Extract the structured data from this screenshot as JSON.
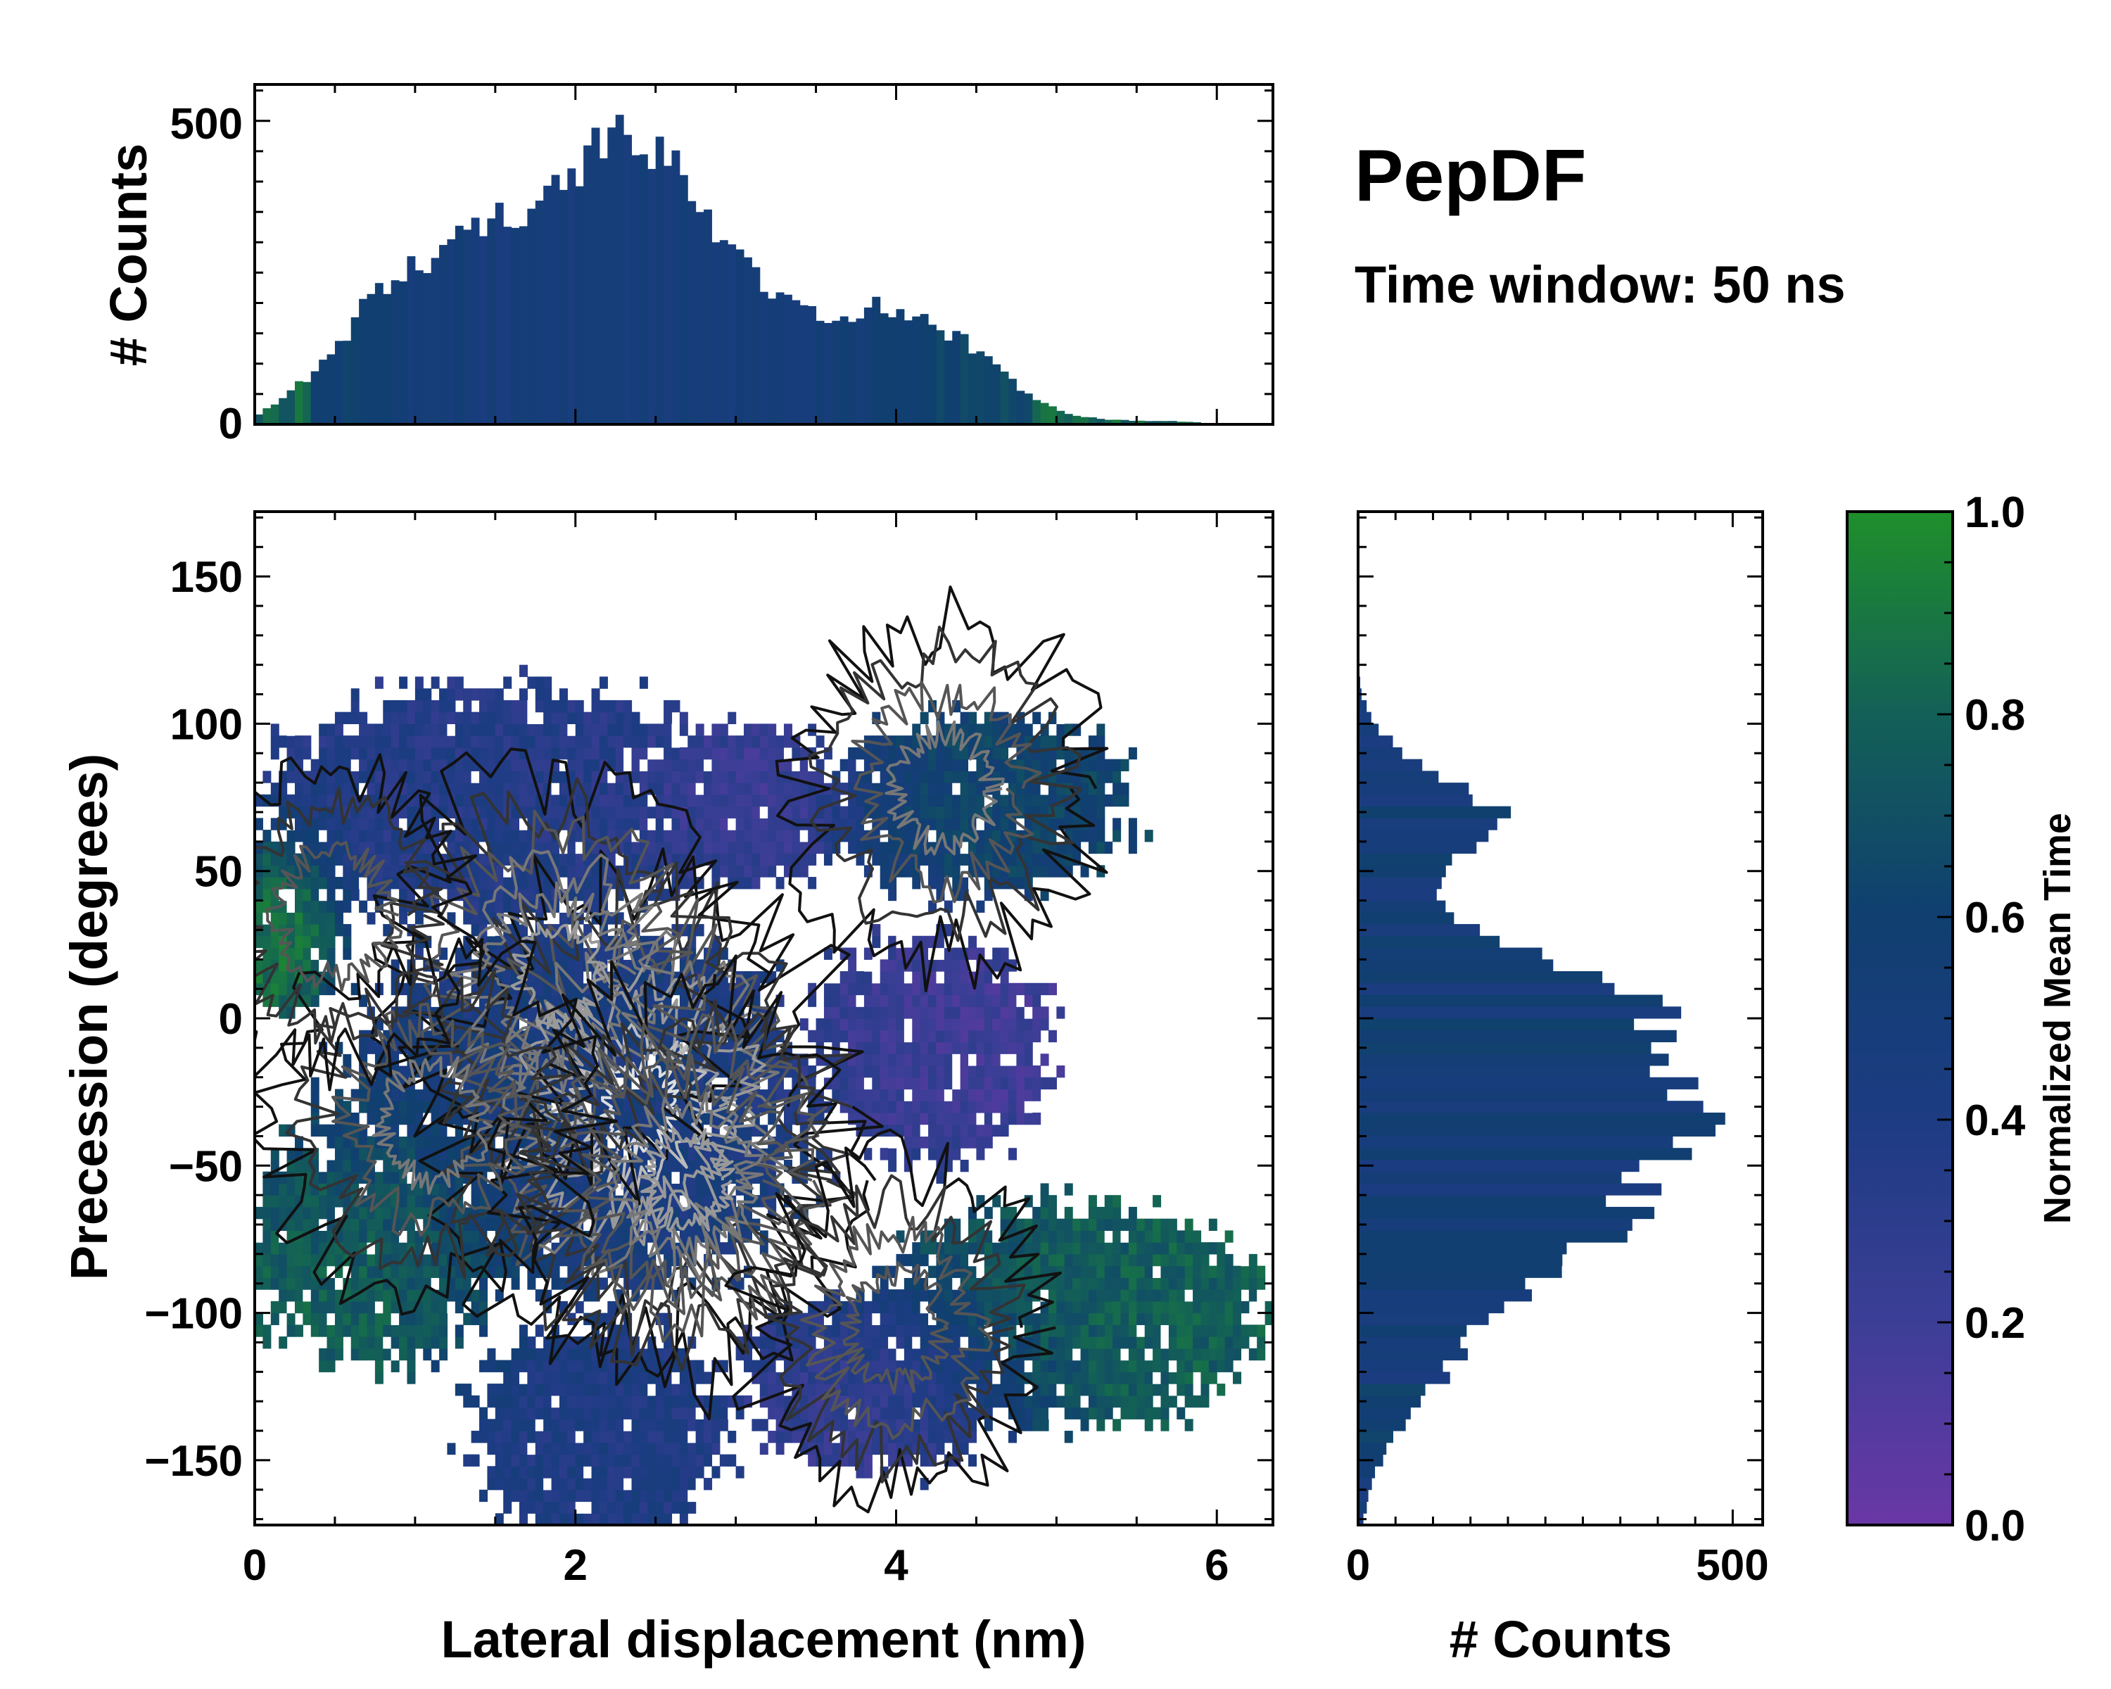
{
  "chart_data": [
    {
      "id": "top-histogram",
      "type": "bar",
      "ylabel": "# Counts",
      "xlim": [
        0,
        6.35
      ],
      "ylim": [
        0,
        560
      ],
      "yticks": [
        0,
        500
      ],
      "bin_width": 0.05,
      "profile_x": [
        0.0,
        0.1,
        0.3,
        0.5,
        0.7,
        0.9,
        1.1,
        1.3,
        1.5,
        1.7,
        1.9,
        2.1,
        2.3,
        2.5,
        2.7,
        2.9,
        3.1,
        3.3,
        3.5,
        3.7,
        3.9,
        4.1,
        4.3,
        4.5,
        4.7,
        4.9,
        5.1,
        5.3,
        5.5,
        5.7,
        5.9,
        6.0
      ],
      "profile_y": [
        10,
        30,
        70,
        120,
        200,
        245,
        280,
        310,
        335,
        360,
        420,
        445,
        450,
        440,
        400,
        320,
        250,
        210,
        175,
        175,
        205,
        175,
        155,
        125,
        75,
        35,
        15,
        8,
        6,
        6,
        3,
        0
      ],
      "peak": {
        "x": 2.25,
        "y": 510
      },
      "color_scale": "normalized_mean_time"
    },
    {
      "id": "main-heatmap",
      "type": "heatmap",
      "xlabel": "Lateral displacement (nm)",
      "ylabel": "Precession (degrees)",
      "xlim": [
        0,
        6.35
      ],
      "ylim": [
        -172,
        172
      ],
      "xticks": [
        0,
        2,
        4,
        6
      ],
      "yticks": [
        -150,
        -100,
        -50,
        0,
        50,
        100,
        150
      ],
      "regions": [
        {
          "name": "upper-left band",
          "x": [
            0.1,
            3.0
          ],
          "y": [
            40,
            105
          ],
          "mean_time": 0.35
        },
        {
          "name": "upper-middle purple",
          "x": [
            2.6,
            3.6
          ],
          "y": [
            55,
            90
          ],
          "mean_time": 0.15
        },
        {
          "name": "upper-right teal",
          "x": [
            3.7,
            5.3
          ],
          "y": [
            50,
            95
          ],
          "mean_time": 0.62
        },
        {
          "name": "left green edge",
          "x": [
            0.0,
            0.35
          ],
          "y": [
            10,
            55
          ],
          "mean_time": 0.95
        },
        {
          "name": "central core",
          "x": [
            0.6,
            3.4
          ],
          "y": [
            -90,
            30
          ],
          "mean_time": 0.45
        },
        {
          "name": "right purple",
          "x": [
            3.6,
            4.8
          ],
          "y": [
            -40,
            20
          ],
          "mean_time": 0.18
        },
        {
          "name": "lower-right green",
          "x": [
            4.0,
            6.2
          ],
          "y": [
            -130,
            -70
          ],
          "mean_time": 0.78
        },
        {
          "name": "lower-left green",
          "x": [
            0.1,
            1.4
          ],
          "y": [
            -110,
            -40
          ],
          "mean_time": 0.82
        },
        {
          "name": "bottom blue lobe",
          "x": [
            1.5,
            2.8
          ],
          "y": [
            -170,
            -110
          ],
          "mean_time": 0.4
        },
        {
          "name": "bottom purple lobe",
          "x": [
            3.2,
            4.6
          ],
          "y": [
            -145,
            -100
          ],
          "mean_time": 0.22
        }
      ],
      "density_peaks": [
        {
          "x": 2.4,
          "y": -30,
          "density": 1.0
        },
        {
          "x": 1.9,
          "y": 15,
          "density": 0.75
        },
        {
          "x": 2.7,
          "y": -55,
          "density": 0.7
        },
        {
          "x": 1.1,
          "y": -35,
          "density": 0.55
        },
        {
          "x": 4.3,
          "y": 78,
          "density": 0.5
        },
        {
          "x": 4.0,
          "y": -105,
          "density": 0.45
        },
        {
          "x": 0.5,
          "y": 35,
          "density": 0.35
        }
      ],
      "contours": "density contour lines, black at low density to white at high density"
    },
    {
      "id": "right-histogram",
      "type": "bar",
      "orientation": "horizontal",
      "xlabel": "# Counts",
      "xlim": [
        0,
        540
      ],
      "xticks": [
        0,
        500
      ],
      "ylim": [
        -172,
        172
      ],
      "bin_width": 4,
      "profile_y": [
        -170,
        -160,
        -150,
        -140,
        -130,
        -120,
        -110,
        -100,
        -90,
        -80,
        -70,
        -60,
        -50,
        -40,
        -30,
        -20,
        -10,
        0,
        10,
        20,
        30,
        40,
        50,
        60,
        70,
        80,
        90,
        100,
        110,
        120
      ],
      "profile_x": [
        8,
        15,
        30,
        55,
        90,
        120,
        140,
        180,
        250,
        300,
        350,
        380,
        400,
        460,
        430,
        400,
        370,
        400,
        340,
        260,
        150,
        120,
        110,
        150,
        190,
        120,
        60,
        20,
        5,
        0
      ],
      "peak": {
        "y": -37,
        "x": 490
      }
    },
    {
      "id": "colorbar",
      "type": "colorbar",
      "label": "Normalized Mean Time",
      "range": [
        0.0,
        1.0
      ],
      "ticks": [
        "0.0",
        "0.2",
        "0.4",
        "0.6",
        "0.8",
        "1.0"
      ],
      "colors": [
        "#6a37a6",
        "#3c3e96",
        "#1d3c83",
        "#103f70",
        "#136057",
        "#1f8f2b"
      ]
    }
  ],
  "annotation": {
    "title": "PepDF",
    "subtitle": "Time window: 50 ns"
  },
  "labels": {
    "top_ylabel": "# Counts",
    "main_xlabel": "Lateral displacement (nm)",
    "main_ylabel": "Precession (degrees)",
    "right_xlabel": "# Counts",
    "colorbar_label": "Normalized Mean Time",
    "top_ytick_0": "0",
    "top_ytick_500": "500",
    "main_xticks": [
      "0",
      "2",
      "4",
      "6"
    ],
    "main_yticks": [
      "−150",
      "−100",
      "−50",
      "0",
      "50",
      "100",
      "150"
    ],
    "right_xtick_0": "0",
    "right_xtick_500": "500"
  }
}
